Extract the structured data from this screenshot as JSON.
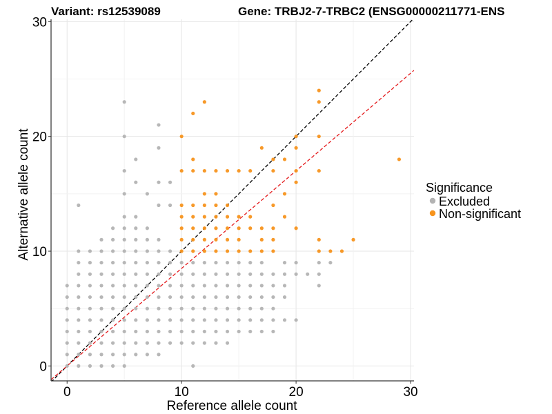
{
  "chart_data": {
    "type": "scatter",
    "title_left": "Variant: rs12539089",
    "title_right": "Gene: TRBJ2-7-TRBC2 (ENSG00000211771-ENS",
    "xlabel": "Reference allele count",
    "ylabel": "Alternative allele count",
    "xlim": [
      -1.4,
      30.3
    ],
    "ylim": [
      -1.3,
      30.2
    ],
    "xticks": [
      0,
      10,
      20,
      30
    ],
    "yticks": [
      0,
      10,
      20,
      30
    ],
    "grid": true,
    "reference_lines": [
      {
        "name": "y = x",
        "color": "#000000",
        "dash": true,
        "slope": 1.0,
        "intercept": 0
      },
      {
        "name": "fitted",
        "color": "#e41a1c",
        "dash": true,
        "slope": 0.85,
        "intercept": 0
      }
    ],
    "legend": {
      "title": "Significance",
      "position": "right",
      "entries": [
        {
          "label": "Excluded",
          "color": "#b3b3b3"
        },
        {
          "label": "Non-significant",
          "color": "#f7941d"
        }
      ]
    },
    "series": [
      {
        "name": "Excluded",
        "color": "#b3b3b3",
        "points": [
          [
            0,
            0
          ],
          [
            0,
            1
          ],
          [
            0,
            2
          ],
          [
            0,
            3
          ],
          [
            0,
            4
          ],
          [
            0,
            5
          ],
          [
            0,
            6
          ],
          [
            0,
            7
          ],
          [
            1,
            0
          ],
          [
            1,
            1
          ],
          [
            1,
            2
          ],
          [
            1,
            3
          ],
          [
            1,
            4
          ],
          [
            1,
            5
          ],
          [
            1,
            6
          ],
          [
            1,
            7
          ],
          [
            1,
            8
          ],
          [
            1,
            9
          ],
          [
            1,
            10
          ],
          [
            1,
            14
          ],
          [
            2,
            0
          ],
          [
            2,
            1
          ],
          [
            2,
            2
          ],
          [
            2,
            3
          ],
          [
            2,
            4
          ],
          [
            2,
            5
          ],
          [
            2,
            6
          ],
          [
            2,
            7
          ],
          [
            2,
            8
          ],
          [
            2,
            9
          ],
          [
            2,
            10
          ],
          [
            3,
            0
          ],
          [
            3,
            1
          ],
          [
            3,
            2
          ],
          [
            3,
            3
          ],
          [
            3,
            4
          ],
          [
            3,
            5
          ],
          [
            3,
            6
          ],
          [
            3,
            7
          ],
          [
            3,
            8
          ],
          [
            3,
            9
          ],
          [
            3,
            10
          ],
          [
            3,
            11
          ],
          [
            4,
            0
          ],
          [
            4,
            1
          ],
          [
            4,
            2
          ],
          [
            4,
            3
          ],
          [
            4,
            4
          ],
          [
            4,
            5
          ],
          [
            4,
            6
          ],
          [
            4,
            7
          ],
          [
            4,
            8
          ],
          [
            4,
            9
          ],
          [
            4,
            10
          ],
          [
            4,
            11
          ],
          [
            4,
            12
          ],
          [
            5,
            0
          ],
          [
            5,
            1
          ],
          [
            5,
            2
          ],
          [
            5,
            3
          ],
          [
            5,
            4
          ],
          [
            5,
            5
          ],
          [
            5,
            6
          ],
          [
            5,
            7
          ],
          [
            5,
            8
          ],
          [
            5,
            9
          ],
          [
            5,
            10
          ],
          [
            5,
            11
          ],
          [
            5,
            12
          ],
          [
            5,
            13
          ],
          [
            5,
            15
          ],
          [
            5,
            17
          ],
          [
            5,
            20
          ],
          [
            5,
            23
          ],
          [
            6,
            1
          ],
          [
            6,
            2
          ],
          [
            6,
            3
          ],
          [
            6,
            4
          ],
          [
            6,
            5
          ],
          [
            6,
            6
          ],
          [
            6,
            7
          ],
          [
            6,
            8
          ],
          [
            6,
            9
          ],
          [
            6,
            10
          ],
          [
            6,
            11
          ],
          [
            6,
            12
          ],
          [
            6,
            13
          ],
          [
            6,
            16
          ],
          [
            6,
            18
          ],
          [
            7,
            1
          ],
          [
            7,
            2
          ],
          [
            7,
            3
          ],
          [
            7,
            4
          ],
          [
            7,
            5
          ],
          [
            7,
            6
          ],
          [
            7,
            7
          ],
          [
            7,
            8
          ],
          [
            7,
            9
          ],
          [
            7,
            10
          ],
          [
            7,
            11
          ],
          [
            7,
            12
          ],
          [
            7,
            15
          ],
          [
            8,
            1
          ],
          [
            8,
            2
          ],
          [
            8,
            3
          ],
          [
            8,
            4
          ],
          [
            8,
            5
          ],
          [
            8,
            6
          ],
          [
            8,
            7
          ],
          [
            8,
            8
          ],
          [
            8,
            9
          ],
          [
            8,
            10
          ],
          [
            8,
            11
          ],
          [
            8,
            14
          ],
          [
            8,
            16
          ],
          [
            8,
            19
          ],
          [
            8,
            21
          ],
          [
            9,
            2
          ],
          [
            9,
            3
          ],
          [
            9,
            4
          ],
          [
            9,
            5
          ],
          [
            9,
            6
          ],
          [
            9,
            7
          ],
          [
            9,
            8
          ],
          [
            9,
            9
          ],
          [
            9,
            10
          ],
          [
            9,
            14
          ],
          [
            9,
            16
          ],
          [
            10,
            2
          ],
          [
            10,
            3
          ],
          [
            10,
            4
          ],
          [
            10,
            5
          ],
          [
            10,
            6
          ],
          [
            10,
            7
          ],
          [
            10,
            8
          ],
          [
            10,
            9
          ],
          [
            11,
            0
          ],
          [
            11,
            2
          ],
          [
            11,
            3
          ],
          [
            11,
            4
          ],
          [
            11,
            5
          ],
          [
            11,
            6
          ],
          [
            11,
            7
          ],
          [
            11,
            8
          ],
          [
            11,
            9
          ],
          [
            12,
            2
          ],
          [
            12,
            3
          ],
          [
            12,
            4
          ],
          [
            12,
            5
          ],
          [
            12,
            6
          ],
          [
            12,
            7
          ],
          [
            12,
            8
          ],
          [
            12,
            9
          ],
          [
            13,
            2
          ],
          [
            13,
            3
          ],
          [
            13,
            4
          ],
          [
            13,
            5
          ],
          [
            13,
            6
          ],
          [
            13,
            7
          ],
          [
            13,
            8
          ],
          [
            13,
            9
          ],
          [
            14,
            2
          ],
          [
            14,
            3
          ],
          [
            14,
            4
          ],
          [
            14,
            5
          ],
          [
            14,
            6
          ],
          [
            14,
            7
          ],
          [
            14,
            8
          ],
          [
            14,
            9
          ],
          [
            15,
            3
          ],
          [
            15,
            4
          ],
          [
            15,
            5
          ],
          [
            15,
            6
          ],
          [
            15,
            7
          ],
          [
            15,
            8
          ],
          [
            15,
            9
          ],
          [
            16,
            3
          ],
          [
            16,
            4
          ],
          [
            16,
            5
          ],
          [
            16,
            6
          ],
          [
            16,
            7
          ],
          [
            16,
            8
          ],
          [
            16,
            9
          ],
          [
            17,
            3
          ],
          [
            17,
            4
          ],
          [
            17,
            5
          ],
          [
            17,
            6
          ],
          [
            17,
            7
          ],
          [
            17,
            8
          ],
          [
            17,
            9
          ],
          [
            18,
            3
          ],
          [
            18,
            4
          ],
          [
            18,
            5
          ],
          [
            18,
            6
          ],
          [
            18,
            7
          ],
          [
            18,
            8
          ],
          [
            19,
            4
          ],
          [
            19,
            6
          ],
          [
            19,
            7
          ],
          [
            19,
            8
          ],
          [
            19,
            9
          ],
          [
            20,
            4
          ],
          [
            20,
            8
          ],
          [
            20,
            9
          ],
          [
            21,
            8
          ],
          [
            22,
            7
          ],
          [
            22,
            8
          ],
          [
            22,
            9
          ],
          [
            23,
            9
          ]
        ]
      },
      {
        "name": "Non-significant",
        "color": "#f7941d",
        "points": [
          [
            10,
            10
          ],
          [
            10,
            11
          ],
          [
            10,
            12
          ],
          [
            10,
            13
          ],
          [
            10,
            14
          ],
          [
            10,
            17
          ],
          [
            10,
            20
          ],
          [
            11,
            10
          ],
          [
            11,
            11
          ],
          [
            11,
            12
          ],
          [
            11,
            13
          ],
          [
            11,
            14
          ],
          [
            11,
            17
          ],
          [
            11,
            18
          ],
          [
            11,
            22
          ],
          [
            12,
            10
          ],
          [
            12,
            11
          ],
          [
            12,
            12
          ],
          [
            12,
            13
          ],
          [
            12,
            14
          ],
          [
            12,
            15
          ],
          [
            12,
            17
          ],
          [
            12,
            23
          ],
          [
            13,
            10
          ],
          [
            13,
            11
          ],
          [
            13,
            12
          ],
          [
            13,
            13
          ],
          [
            13,
            14
          ],
          [
            13,
            15
          ],
          [
            13,
            17
          ],
          [
            14,
            10
          ],
          [
            14,
            11
          ],
          [
            14,
            12
          ],
          [
            14,
            13
          ],
          [
            14,
            14
          ],
          [
            14,
            17
          ],
          [
            15,
            10
          ],
          [
            15,
            11
          ],
          [
            15,
            12
          ],
          [
            15,
            13
          ],
          [
            15,
            17
          ],
          [
            16,
            10
          ],
          [
            16,
            12
          ],
          [
            16,
            13
          ],
          [
            16,
            17
          ],
          [
            17,
            10
          ],
          [
            17,
            11
          ],
          [
            17,
            12
          ],
          [
            17,
            19
          ],
          [
            18,
            10
          ],
          [
            18,
            11
          ],
          [
            18,
            12
          ],
          [
            18,
            14
          ],
          [
            18,
            17
          ],
          [
            18,
            18
          ],
          [
            19,
            13
          ],
          [
            19,
            15
          ],
          [
            19,
            18
          ],
          [
            20,
            12
          ],
          [
            20,
            16
          ],
          [
            20,
            17
          ],
          [
            20,
            19
          ],
          [
            20,
            20
          ],
          [
            22,
            10
          ],
          [
            22,
            11
          ],
          [
            22,
            17
          ],
          [
            22,
            20
          ],
          [
            22,
            23
          ],
          [
            22,
            24
          ],
          [
            23,
            10
          ],
          [
            24,
            10
          ],
          [
            25,
            11
          ],
          [
            29,
            18
          ]
        ]
      }
    ]
  }
}
